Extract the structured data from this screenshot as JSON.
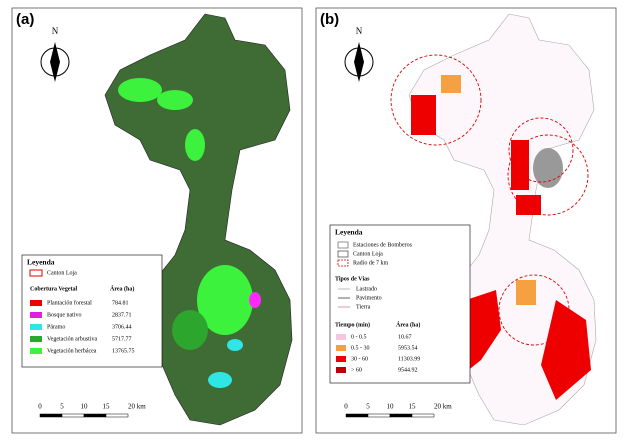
{
  "panels": [
    {
      "label": "(a)",
      "north": "N",
      "legend": {
        "title": "Leyenda",
        "boundary": "Canton Loja",
        "table_header": [
          "Cobertura Vegetal",
          "Área (ha)"
        ],
        "rows": [
          [
            "Plantación forestal",
            "784.81"
          ],
          [
            "Bosque nativo",
            "2837.71"
          ],
          [
            "Páramo",
            "3706.44"
          ],
          [
            "Vegetación arbustiva",
            "5717.77"
          ],
          [
            "Vegetación herbácea",
            "13765.75"
          ]
        ]
      },
      "scale_bar": [
        "0",
        "5",
        "10",
        "15",
        "20 km"
      ]
    },
    {
      "label": "(b)",
      "north": "N",
      "legend": {
        "title": "Leyenda",
        "items": [
          "Estaciones de Bomberos",
          "Canton Loja",
          "Radio de 7 km"
        ],
        "roads_title": "Tipos de Vías",
        "roads": [
          "Lastrado",
          "Pavimento",
          "Tierra"
        ],
        "table_header": [
          "Tiempo (min)",
          "Área (ha)"
        ],
        "rows": [
          [
            "0 - 0.5",
            "10.67"
          ],
          [
            "0.5 - 30",
            "5953.54"
          ],
          [
            "30 - 60",
            "11303.99"
          ],
          [
            "> 60",
            "9544.92"
          ]
        ]
      },
      "scale_bar": [
        "0",
        "5",
        "10",
        "15",
        "20 km"
      ]
    }
  ]
}
